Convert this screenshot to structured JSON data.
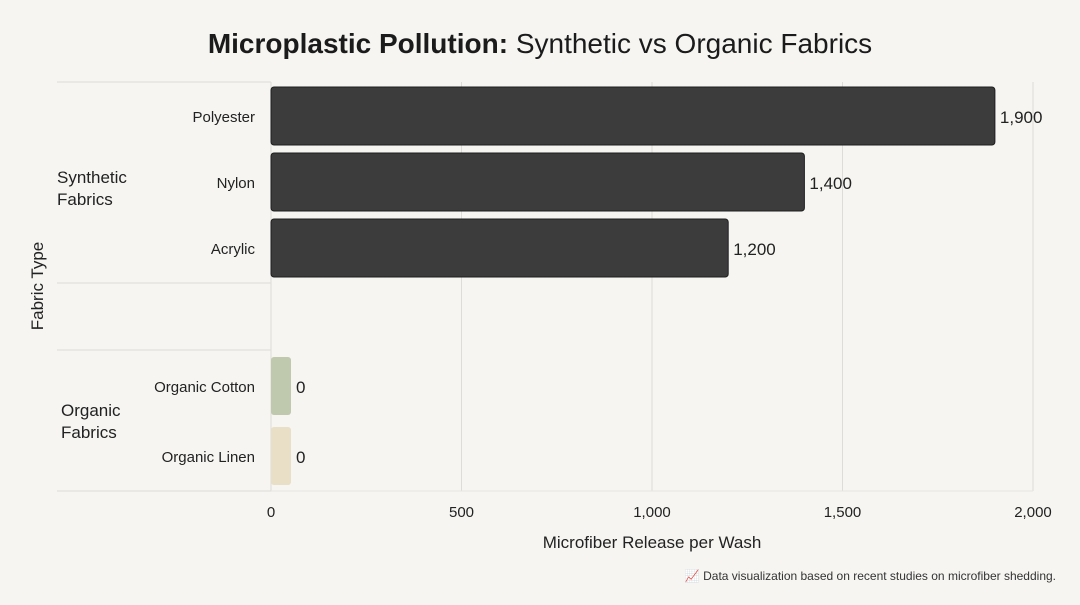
{
  "chart_data": {
    "type": "bar",
    "orientation": "horizontal",
    "title_bold": "Microplastic Pollution:",
    "title_rest": " Synthetic vs Organic Fabrics",
    "xlabel": "Microfiber Release per Wash",
    "ylabel": "Fabric Type",
    "xlim": [
      0,
      2000
    ],
    "xticks": [
      0,
      500,
      1000,
      1500,
      2000
    ],
    "xtick_labels": [
      "0",
      "500",
      "1,000",
      "1,500",
      "2,000"
    ],
    "grid": "vertical",
    "groups": [
      {
        "name": "Synthetic\nFabrics",
        "categories": [
          "Polyester",
          "Nylon",
          "Acrylic"
        ],
        "values": [
          1900,
          1400,
          1200
        ],
        "labels": [
          "1,900",
          "1,400",
          "1,200"
        ],
        "colors": [
          "#3d3c3d",
          "#3d3c3d",
          "#3d3c3d"
        ]
      },
      {
        "name": "Organic\nFabrics",
        "categories": [
          "Organic Cotton",
          "Organic Linen"
        ],
        "values": [
          0,
          0
        ],
        "labels": [
          "0",
          "0"
        ],
        "colors": [
          "#bfc9ae",
          "#e8dfc6"
        ]
      }
    ]
  },
  "footnote": {
    "icon": "chart-increasing-icon",
    "text": "Data visualization based on recent studies on microfiber shedding."
  }
}
